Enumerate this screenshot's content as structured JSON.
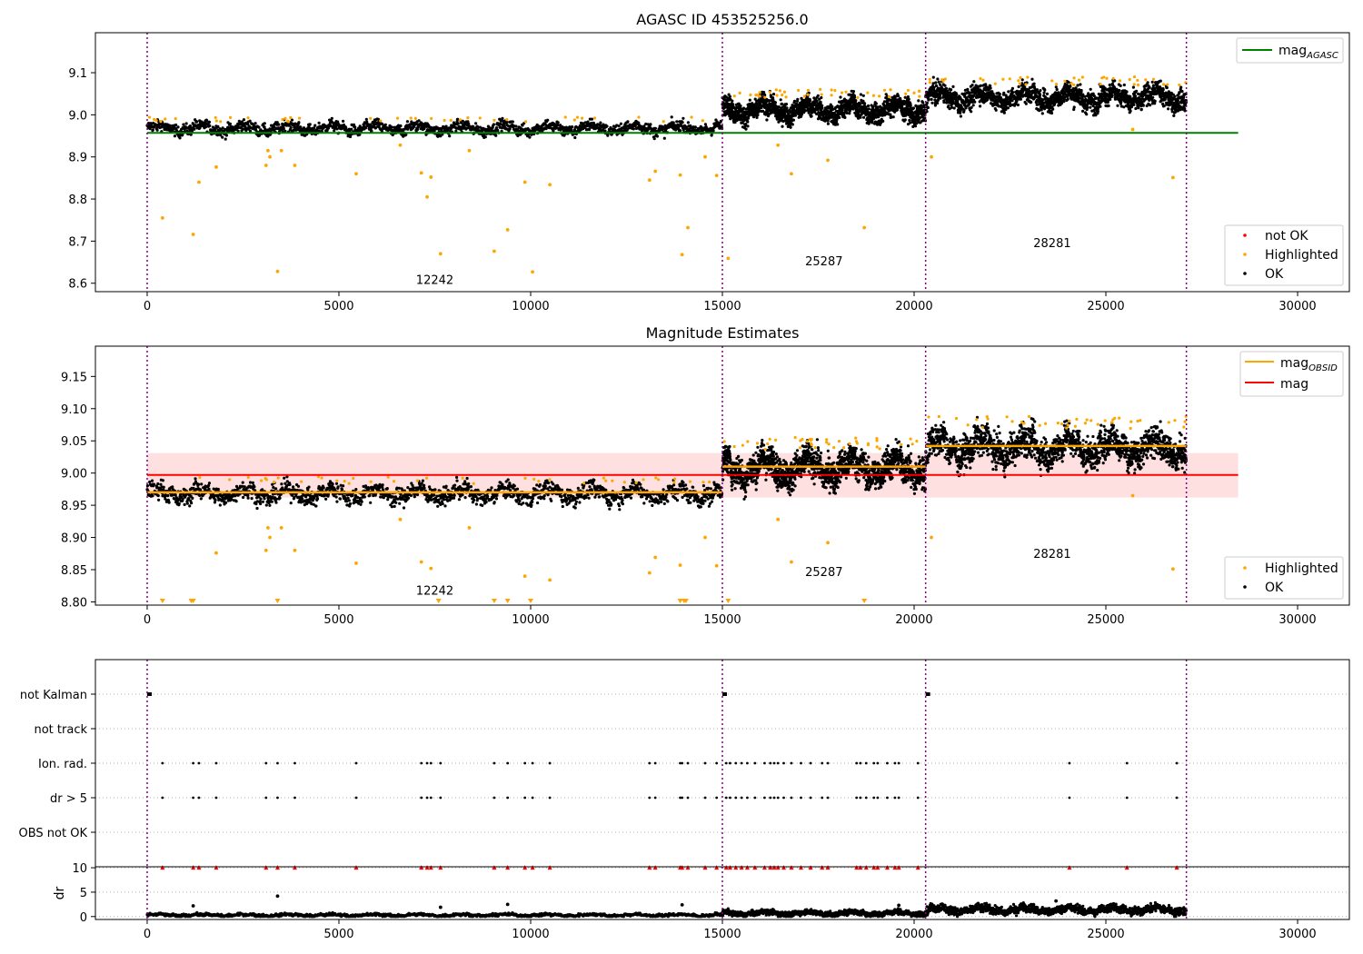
{
  "figure": {
    "colors": {
      "ok": "#000000",
      "highlighted": "#ffa500",
      "not_ok": "#ff0000",
      "agasc_line": "#008000",
      "obsid_line": "#ffa500",
      "mean_line": "#ff0000",
      "band": "#ffe0e0",
      "boundary": "#800080",
      "grid": "#b0b0b0"
    }
  },
  "chart_data": [
    {
      "type": "scatter",
      "title": "AGASC ID 453525256.0",
      "xlim": [
        -1350,
        31350
      ],
      "ylim": [
        8.58,
        9.195
      ],
      "x_ticks": [
        0,
        5000,
        10000,
        15000,
        20000,
        25000,
        30000
      ],
      "x_tick_labels": [
        "0",
        "5000",
        "10000",
        "15000",
        "20000",
        "25000",
        "30000"
      ],
      "y_ticks": [
        8.6,
        8.7,
        8.8,
        8.9,
        9.0,
        9.1
      ],
      "y_tick_labels": [
        "8.6",
        "8.7",
        "8.8",
        "8.9",
        "9.0",
        "9.1"
      ],
      "obsid_boundaries": [
        0,
        15000,
        20300,
        27100
      ],
      "obsid_annotations": [
        {
          "label": "12242",
          "x": 7500,
          "y": 8.598
        },
        {
          "label": "25287",
          "x": 17650,
          "y": 8.643
        },
        {
          "label": "28281",
          "x": 23600,
          "y": 8.686
        }
      ],
      "reference_lines": [
        {
          "name": "mag_AGASC",
          "y": 8.957,
          "x_range": [
            0,
            28450
          ]
        }
      ],
      "segments": [
        {
          "x_range": [
            0,
            15000
          ],
          "center": 8.968,
          "spread": 0.012
        },
        {
          "x_range": [
            15000,
            20300
          ],
          "center": 9.012,
          "spread": 0.022
        },
        {
          "x_range": [
            20300,
            27100
          ],
          "center": 9.042,
          "spread": 0.022
        }
      ],
      "highlighted_points": [
        [
          400,
          8.755
        ],
        [
          1200,
          8.716
        ],
        [
          1350,
          8.84
        ],
        [
          1800,
          8.876
        ],
        [
          3100,
          8.88
        ],
        [
          3150,
          8.915
        ],
        [
          3200,
          8.9
        ],
        [
          3400,
          8.628
        ],
        [
          3500,
          8.915
        ],
        [
          3850,
          8.88
        ],
        [
          5450,
          8.86
        ],
        [
          6600,
          8.928
        ],
        [
          7150,
          8.862
        ],
        [
          7300,
          8.805
        ],
        [
          7400,
          8.852
        ],
        [
          7650,
          8.67
        ],
        [
          8400,
          8.915
        ],
        [
          9050,
          8.676
        ],
        [
          9400,
          8.727
        ],
        [
          9850,
          8.84
        ],
        [
          10050,
          8.627
        ],
        [
          10500,
          8.834
        ],
        [
          13100,
          8.845
        ],
        [
          13250,
          8.866
        ],
        [
          13900,
          8.857
        ],
        [
          13950,
          8.668
        ],
        [
          14100,
          8.732
        ],
        [
          14550,
          8.9
        ],
        [
          14850,
          8.856
        ],
        [
          15150,
          8.659
        ],
        [
          16450,
          8.928
        ],
        [
          16800,
          8.86
        ],
        [
          17750,
          8.892
        ],
        [
          18700,
          8.732
        ],
        [
          20450,
          8.9
        ],
        [
          25700,
          8.965
        ],
        [
          26750,
          8.851
        ]
      ],
      "legend": [
        {
          "label": "mag",
          "subscript": "AGASC",
          "style": "line",
          "placement": "upper-right"
        },
        {
          "label": "not OK",
          "style": "dot",
          "placement": "lower-right"
        },
        {
          "label": "Highlighted",
          "style": "dot",
          "placement": "lower-right"
        },
        {
          "label": "OK",
          "style": "dot",
          "placement": "lower-right"
        }
      ]
    },
    {
      "type": "scatter",
      "title": "Magnitude Estimates",
      "xlim": [
        -1350,
        31350
      ],
      "ylim": [
        8.795,
        9.197
      ],
      "x_ticks": [
        0,
        5000,
        10000,
        15000,
        20000,
        25000,
        30000
      ],
      "x_tick_labels": [
        "0",
        "5000",
        "10000",
        "15000",
        "20000",
        "25000",
        "30000"
      ],
      "y_ticks": [
        8.8,
        8.85,
        8.9,
        8.95,
        9.0,
        9.05,
        9.1,
        9.15
      ],
      "y_tick_labels": [
        "8.80",
        "8.85",
        "8.90",
        "8.95",
        "9.00",
        "9.05",
        "9.10",
        "9.15"
      ],
      "obsid_boundaries": [
        0,
        15000,
        20300,
        27100
      ],
      "obsid_annotations": [
        {
          "label": "12242",
          "x": 7500,
          "y": 8.811
        },
        {
          "label": "25287",
          "x": 17650,
          "y": 8.84
        },
        {
          "label": "28281",
          "x": 23600,
          "y": 8.868
        }
      ],
      "mean_mag": {
        "name": "mag",
        "y": 8.997,
        "band": [
          8.962,
          9.031
        ],
        "x_range": [
          0,
          28450
        ]
      },
      "obsid_mags": [
        {
          "x_range": [
            0,
            15000
          ],
          "y": 8.97
        },
        {
          "x_range": [
            15000,
            20300
          ],
          "y": 9.01
        },
        {
          "x_range": [
            20300,
            27100
          ],
          "y": 9.042
        }
      ],
      "highlighted_points": [
        [
          1800,
          8.876
        ],
        [
          3100,
          8.88
        ],
        [
          3150,
          8.915
        ],
        [
          3200,
          8.9
        ],
        [
          3500,
          8.915
        ],
        [
          3850,
          8.88
        ],
        [
          5450,
          8.86
        ],
        [
          6600,
          8.928
        ],
        [
          7150,
          8.862
        ],
        [
          7400,
          8.852
        ],
        [
          8400,
          8.915
        ],
        [
          9850,
          8.84
        ],
        [
          10500,
          8.834
        ],
        [
          13100,
          8.845
        ],
        [
          13250,
          8.869
        ],
        [
          13900,
          8.857
        ],
        [
          14550,
          8.9
        ],
        [
          14850,
          8.856
        ],
        [
          16450,
          8.928
        ],
        [
          16800,
          8.862
        ],
        [
          17750,
          8.892
        ],
        [
          20450,
          8.9
        ],
        [
          25700,
          8.965
        ],
        [
          26750,
          8.851
        ]
      ],
      "below_range_markers": [
        400,
        1150,
        1200,
        3400,
        7600,
        9050,
        9400,
        10000,
        13900,
        14000,
        14050,
        15150,
        18700
      ],
      "legend": [
        {
          "label": "mag",
          "subscript": "OBSID",
          "style": "line",
          "placement": "upper-right"
        },
        {
          "label": "mag",
          "style": "line",
          "placement": "upper-right"
        },
        {
          "label": "Highlighted",
          "style": "dot",
          "placement": "lower-right"
        },
        {
          "label": "OK",
          "style": "dot",
          "placement": "lower-right"
        }
      ]
    },
    {
      "type": "scatter",
      "title": "",
      "xlim": [
        -1350,
        31350
      ],
      "categories": [
        "not Kalman",
        "not track",
        "Ion. rad.",
        "dr > 5",
        "OBS not OK"
      ],
      "flag_x": [
        400,
        1200,
        1350,
        1800,
        3100,
        3400,
        3850,
        5450,
        7150,
        7300,
        7400,
        7650,
        9050,
        9400,
        9850,
        10050,
        10500,
        13100,
        13250,
        13900,
        13950,
        14100,
        14550,
        14850,
        15100,
        15200,
        15350,
        15500,
        15650,
        15850,
        16100,
        16250,
        16350,
        16450,
        16600,
        16800,
        17050,
        17300,
        17600,
        17750,
        18500,
        18600,
        18750,
        18950,
        19050,
        19300,
        19500,
        19600,
        20100,
        24050,
        25550,
        26850
      ],
      "not_kalman_x": [
        0,
        15000,
        20300
      ]
    },
    {
      "type": "scatter",
      "title": "",
      "ylabel": "dr",
      "xlim": [
        -1350,
        31350
      ],
      "ylim": [
        -0.6,
        10.2
      ],
      "x_ticks": [
        0,
        5000,
        10000,
        15000,
        20000,
        25000,
        30000
      ],
      "x_tick_labels": [
        "0",
        "5000",
        "10000",
        "15000",
        "20000",
        "25000",
        "30000"
      ],
      "y_ticks": [
        0,
        5,
        10
      ],
      "y_tick_labels": [
        "0",
        "5",
        "10"
      ],
      "clipped_value": 10,
      "segment_levels": [
        {
          "x_range": [
            0,
            15000
          ],
          "center": 0.3,
          "spread": 0.25
        },
        {
          "x_range": [
            15000,
            20300
          ],
          "center": 0.7,
          "spread": 0.45
        },
        {
          "x_range": [
            20300,
            27100
          ],
          "center": 1.4,
          "spread": 0.75
        }
      ],
      "outlier_points": [
        [
          1200,
          2.2
        ],
        [
          3400,
          4.2
        ],
        [
          7650,
          1.9
        ],
        [
          9400,
          2.5
        ],
        [
          13950,
          2.4
        ],
        [
          19600,
          2.3
        ],
        [
          23700,
          3.2
        ]
      ]
    }
  ]
}
